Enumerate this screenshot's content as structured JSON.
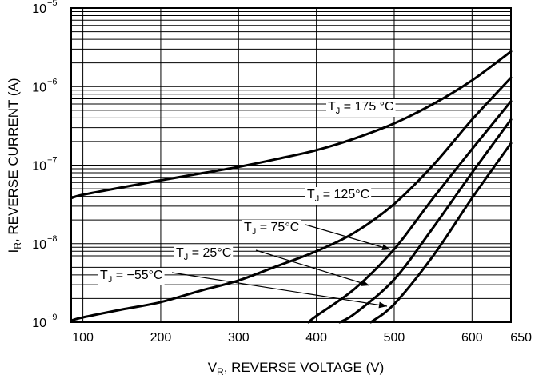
{
  "chart_data": {
    "type": "line",
    "title": "",
    "xlabel": {
      "main": "V",
      "sub": "R",
      "rest": ", REVERSE VOLTAGE (V)"
    },
    "ylabel": {
      "main": "I",
      "sub": "R",
      "rest": ", REVERSE CURRENT (A)"
    },
    "xlim": [
      85,
      650
    ],
    "ylim": [
      1e-09,
      1e-05
    ],
    "y_scale": "log",
    "grid": true,
    "x_ticks": [
      {
        "value": 100,
        "label": "100"
      },
      {
        "value": 200,
        "label": "200"
      },
      {
        "value": 300,
        "label": "300"
      },
      {
        "value": 400,
        "label": "400"
      },
      {
        "value": 500,
        "label": "500"
      },
      {
        "value": 600,
        "label": "600"
      },
      {
        "value": 650,
        "label": "650"
      }
    ],
    "y_ticks": [
      {
        "value": 1e-09,
        "base": "10",
        "exp": "−9"
      },
      {
        "value": 1e-08,
        "base": "10",
        "exp": "−8"
      },
      {
        "value": 1e-07,
        "base": "10",
        "exp": "−7"
      },
      {
        "value": 1e-06,
        "base": "10",
        "exp": "−6"
      },
      {
        "value": 1e-05,
        "base": "10",
        "exp": "−5"
      }
    ],
    "series": [
      {
        "name": "T_J = 175 °C",
        "label": {
          "main": "T",
          "sub": "J",
          "rest": " = 175  °C"
        },
        "x": [
          85,
          100,
          150,
          200,
          250,
          300,
          350,
          400,
          450,
          500,
          550,
          600,
          650
        ],
        "y": [
          3.8e-08,
          4.2e-08,
          5.2e-08,
          6.4e-08,
          7.8e-08,
          9.5e-08,
          1.2e-07,
          1.55e-07,
          2.2e-07,
          3.4e-07,
          6e-07,
          1.2e-06,
          2.8e-06
        ]
      },
      {
        "name": "T_J = 125°C",
        "label": {
          "main": "T",
          "sub": "J",
          "rest": " = 125°C"
        },
        "x": [
          85,
          100,
          150,
          200,
          250,
          300,
          350,
          400,
          450,
          500,
          550,
          600,
          650
        ],
        "y": [
          1.05e-09,
          1.15e-09,
          1.45e-09,
          1.8e-09,
          2.5e-09,
          3.4e-09,
          5.2e-09,
          8e-09,
          1.4e-08,
          3.2e-08,
          1e-07,
          3.8e-07,
          1.3e-06
        ]
      },
      {
        "name": "T_J = 75°C",
        "label": {
          "main": "T",
          "sub": "J",
          "rest": " = 75°C"
        },
        "x": [
          390,
          400,
          450,
          500,
          550,
          600,
          650
        ],
        "y": [
          1e-09,
          1.2e-09,
          2.7e-09,
          8.5e-09,
          3.8e-08,
          1.6e-07,
          6.5e-07
        ]
      },
      {
        "name": "T_J = 25°C",
        "label": {
          "main": "T",
          "sub": "J",
          "rest": " = 25°C"
        },
        "x": [
          430,
          450,
          500,
          550,
          600,
          650
        ],
        "y": [
          1e-09,
          1.3e-09,
          3.5e-09,
          1.6e-08,
          8e-08,
          3.8e-07
        ]
      },
      {
        "name": "T_J = −55°C",
        "label": {
          "main": "T",
          "sub": "J",
          "rest": " = −55°C"
        },
        "x": [
          470,
          500,
          550,
          600,
          650
        ],
        "y": [
          1e-09,
          1.7e-09,
          7e-09,
          3.8e-08,
          1.9e-07
        ]
      }
    ]
  }
}
